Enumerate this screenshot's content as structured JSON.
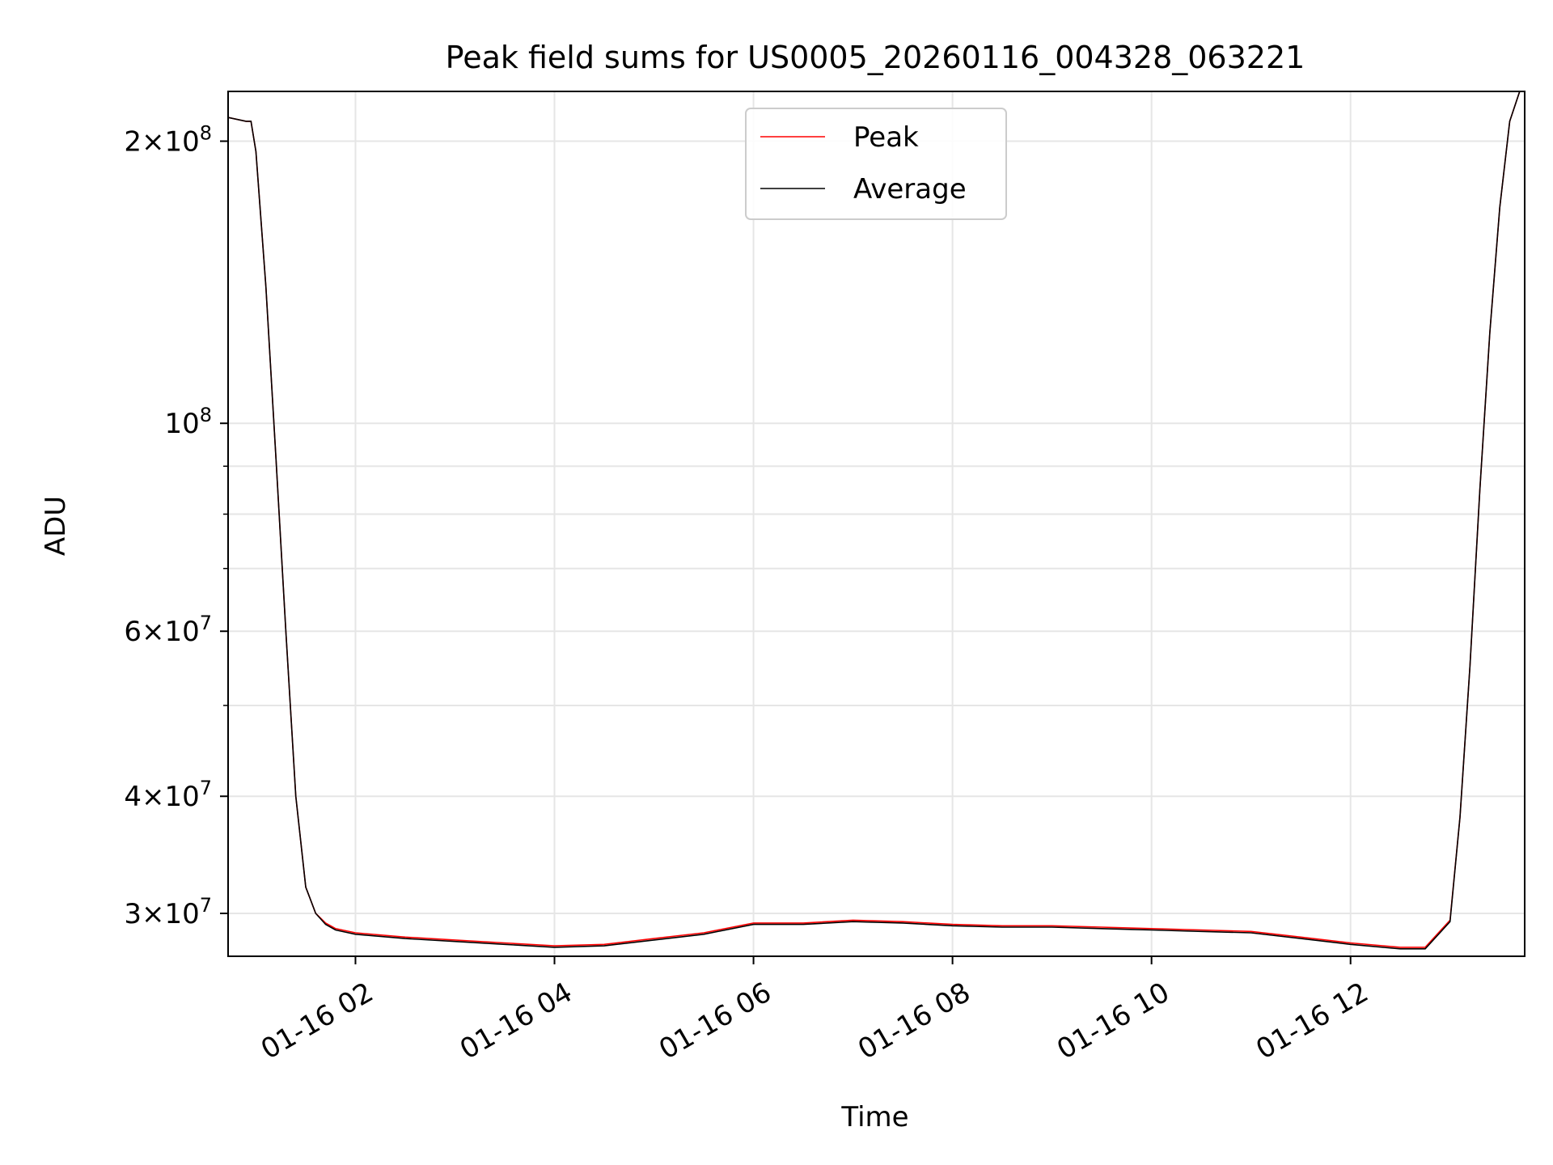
{
  "chart_data": {
    "type": "line",
    "title": "Peak field sums for US0005_20260116_004328_063221",
    "xlabel": "Time",
    "ylabel": "ADU",
    "yscale": "log",
    "ylim": [
      27000000,
      226000000
    ],
    "xlim_hours": [
      0.72,
      13.75
    ],
    "grid": true,
    "legend_position": "top-center",
    "x_ticks": [
      {
        "hours": 2,
        "label": "01-16 02"
      },
      {
        "hours": 4,
        "label": "01-16 04"
      },
      {
        "hours": 6,
        "label": "01-16 06"
      },
      {
        "hours": 8,
        "label": "01-16 08"
      },
      {
        "hours": 10,
        "label": "01-16 10"
      },
      {
        "hours": 12,
        "label": "01-16 12"
      }
    ],
    "y_ticks_major": [
      {
        "value": 30000000,
        "base": "3",
        "exp": "7",
        "label": "3×10^7"
      },
      {
        "value": 40000000,
        "base": "4",
        "exp": "7",
        "label": "4×10^7"
      },
      {
        "value": 60000000,
        "base": "6",
        "exp": "7",
        "label": "6×10^7"
      },
      {
        "value": 100000000,
        "base": "",
        "exp": "8",
        "label": "10^8"
      },
      {
        "value": 200000000,
        "base": "2",
        "exp": "8",
        "label": "2×10^8"
      }
    ],
    "y_ticks_minor": [
      50000000,
      70000000,
      80000000,
      90000000
    ],
    "series": [
      {
        "name": "Peak",
        "color": "#ff0000",
        "x_hours": [
          0.72,
          0.9,
          0.95,
          1.0,
          1.1,
          1.2,
          1.3,
          1.4,
          1.5,
          1.6,
          1.7,
          1.8,
          2.0,
          2.5,
          3.0,
          3.5,
          4.0,
          4.5,
          5.0,
          5.5,
          6.0,
          6.5,
          7.0,
          7.5,
          8.0,
          8.5,
          9.0,
          9.5,
          10.0,
          10.5,
          11.0,
          11.5,
          12.0,
          12.5,
          12.75,
          13.0,
          13.1,
          13.2,
          13.3,
          13.4,
          13.5,
          13.6,
          13.7
        ],
        "values": [
          212000000,
          210000000,
          210000000,
          195000000,
          140000000,
          92000000,
          60000000,
          40000000,
          32000000,
          30000000,
          29300000,
          28900000,
          28600000,
          28300000,
          28100000,
          27900000,
          27700000,
          27800000,
          28200000,
          28600000,
          29300000,
          29300000,
          29500000,
          29400000,
          29200000,
          29100000,
          29100000,
          29000000,
          28900000,
          28800000,
          28700000,
          28300000,
          27900000,
          27600000,
          27600000,
          29500000,
          38000000,
          55000000,
          85000000,
          125000000,
          170000000,
          210000000,
          226000000
        ]
      },
      {
        "name": "Average",
        "color": "#000000",
        "x_hours": [
          0.72,
          0.9,
          0.95,
          1.0,
          1.1,
          1.2,
          1.3,
          1.4,
          1.5,
          1.6,
          1.7,
          1.8,
          2.0,
          2.5,
          3.0,
          3.5,
          4.0,
          4.5,
          5.0,
          5.5,
          6.0,
          6.5,
          7.0,
          7.5,
          8.0,
          8.5,
          9.0,
          9.5,
          10.0,
          10.5,
          11.0,
          11.5,
          12.0,
          12.5,
          12.75,
          13.0,
          13.1,
          13.2,
          13.3,
          13.4,
          13.5,
          13.6,
          13.7
        ],
        "values": [
          212000000,
          210000000,
          210000000,
          195000000,
          140000000,
          92000000,
          60000000,
          40000000,
          32000000,
          30000000,
          29200000,
          28800000,
          28500000,
          28200000,
          28000000,
          27800000,
          27600000,
          27700000,
          28100000,
          28500000,
          29200000,
          29200000,
          29400000,
          29300000,
          29100000,
          29000000,
          29000000,
          28900000,
          28800000,
          28700000,
          28600000,
          28200000,
          27800000,
          27500000,
          27500000,
          29400000,
          38000000,
          55000000,
          85000000,
          125000000,
          170000000,
          210000000,
          226000000
        ]
      }
    ]
  }
}
